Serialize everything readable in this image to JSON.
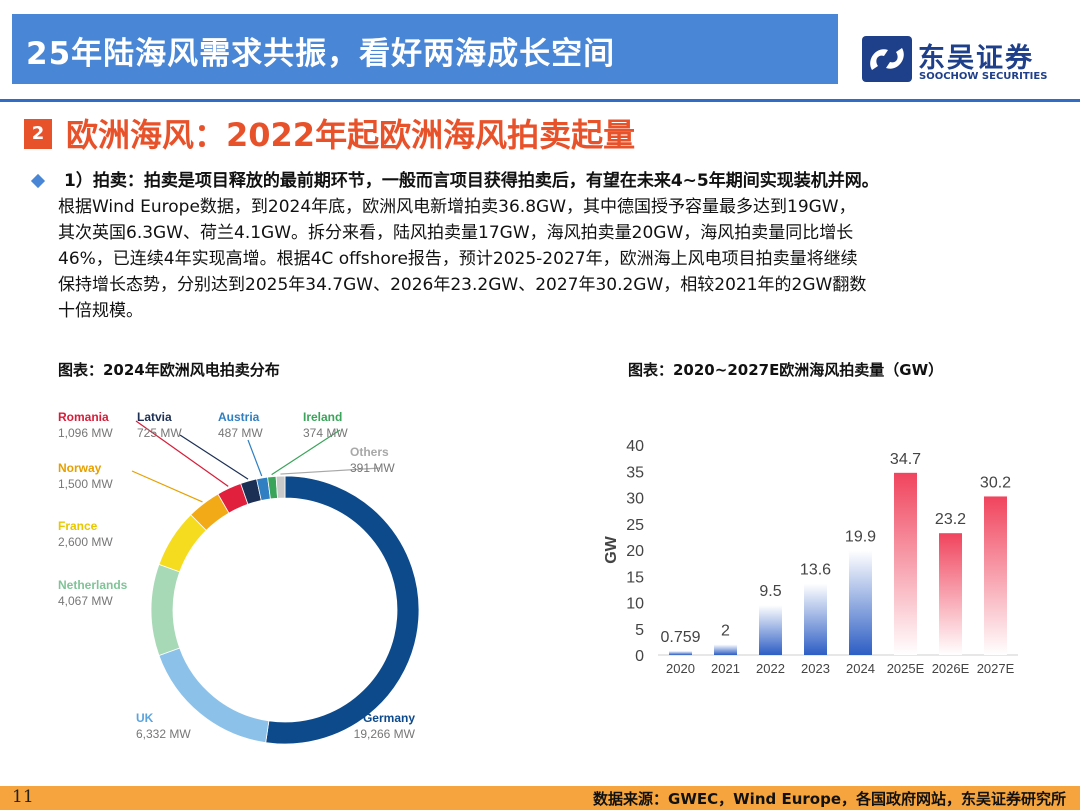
{
  "header": {
    "title": "25年陆海风需求共振，看好两海成长空间",
    "logo_cn": "东吴证券",
    "logo_en": "SOOCHOW SECURITIES"
  },
  "section": {
    "number": "2",
    "title": "欧洲海风：2022年起欧洲海风拍卖起量"
  },
  "paragraph": {
    "lead": "1）拍卖：拍卖是项目释放的最前期环节，一般而言项目获得拍卖后，有望在未来4~5年期间实现装机并网。",
    "line2": "根据Wind Europe数据，到2024年底，欧洲风电新增拍卖36.8GW，其中德国授予容量最多达到19GW，",
    "line3": "其次英国6.3GW、荷兰4.1GW。拆分来看，陆风拍卖量17GW，海风拍卖量20GW，海风拍卖量同比增长",
    "line4": "46%，已连续4年实现高增。根据4C offshore报告，预计2025-2027年，欧洲海上风电项目拍卖量将继续",
    "line5": "保持增长态势，分别达到2025年34.7GW、2026年23.2GW、2027年30.2GW，相较2021年的2GW翻数",
    "line6": "十倍规模。"
  },
  "captions": {
    "left": "图表：2024年欧洲风电拍卖分布",
    "right": "图表：2020~2027E欧洲海风拍卖量（GW）"
  },
  "footer": {
    "page": "11",
    "source": "数据来源：GWEC，Wind Europe，各国政府网站，东吴证券研究所"
  },
  "chart_data": [
    {
      "type": "pie",
      "variant": "donut",
      "title": "",
      "series": [
        {
          "name": "Germany",
          "value": 19266,
          "label": "19,266 MW",
          "color": "#0d4a8c"
        },
        {
          "name": "UK",
          "value": 6332,
          "label": "6,332 MW",
          "color": "#8cc2ea"
        },
        {
          "name": "Netherlands",
          "value": 4067,
          "label": "4,067 MW",
          "color": "#a8d9b6"
        },
        {
          "name": "France",
          "value": 2600,
          "label": "2,600 MW",
          "color": "#f5dc1e"
        },
        {
          "name": "Norway",
          "value": 1500,
          "label": "1,500 MW",
          "color": "#f2ab16"
        },
        {
          "name": "Romania",
          "value": 1096,
          "label": "1,096 MW",
          "color": "#e0203d"
        },
        {
          "name": "Latvia",
          "value": 725,
          "label": "725 MW",
          "color": "#1c2f55"
        },
        {
          "name": "Austria",
          "value": 487,
          "label": "487 MW",
          "color": "#2f7fc2"
        },
        {
          "name": "Ireland",
          "value": 374,
          "label": "374 MW",
          "color": "#3aa45a"
        },
        {
          "name": "Others",
          "value": 391,
          "label": "391 MW",
          "color": "#c9c9c9"
        }
      ],
      "label_colors": {
        "Germany": "#0d4a8c",
        "UK": "#5ba3dd",
        "Netherlands": "#7fc497",
        "France": "#e8c800",
        "Norway": "#e6a000",
        "Romania": "#d81c38",
        "Latvia": "#1c2f55",
        "Austria": "#2f7fc2",
        "Ireland": "#3aa45a",
        "Others": "#a8a8a8"
      },
      "value_color": "#777777"
    },
    {
      "type": "bar",
      "title": "",
      "categories": [
        "2020",
        "2021",
        "2022",
        "2023",
        "2024",
        "2025E",
        "2026E",
        "2027E"
      ],
      "values": [
        0.759,
        2,
        9.5,
        13.6,
        19.9,
        34.7,
        23.2,
        30.2
      ],
      "value_labels": [
        "0.759",
        "2",
        "9.5",
        "13.6",
        "19.9",
        "34.7",
        "23.2",
        "30.2"
      ],
      "ylabel": "GW",
      "xlabel": "",
      "ylim": [
        0,
        40
      ],
      "yticks": [
        0,
        5,
        10,
        15,
        20,
        25,
        30,
        35,
        40
      ],
      "grid": false,
      "colors": {
        "actual": "#2d5ec4",
        "forecast": "#f0445d"
      },
      "forecast_from_index": 5
    }
  ]
}
